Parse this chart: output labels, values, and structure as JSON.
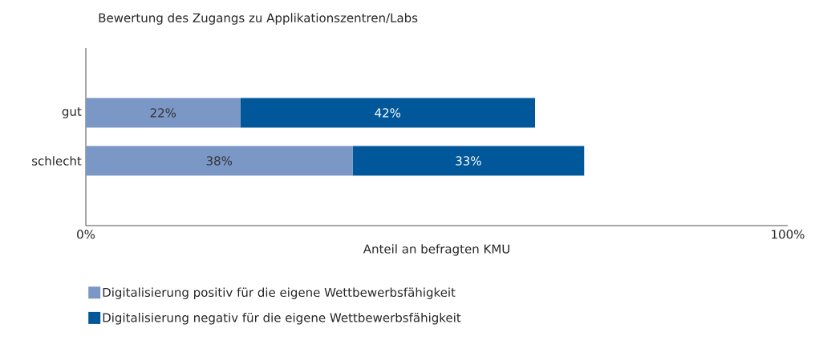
{
  "chart_data": {
    "type": "bar",
    "orientation": "horizontal",
    "stacked": true,
    "title": "Bewertung des Zugangs zu Applikationszentren/Labs",
    "xlabel": "Anteil an befragten KMU",
    "categories": [
      "gut",
      "schlecht"
    ],
    "series": [
      {
        "name": "Digitalisierung positiv für die eigene Wettbewerbsfähigkeit",
        "color": "#7b97c6",
        "values": [
          22,
          38
        ],
        "value_labels": [
          "22%",
          "38%"
        ]
      },
      {
        "name": "Digitalisierung negativ für die eigene Wettbewerbsfähigkeit",
        "color": "#00589b",
        "values": [
          42,
          33
        ],
        "value_labels": [
          "42%",
          "33%"
        ]
      }
    ],
    "xlim": [
      0,
      100
    ],
    "xticks": [
      {
        "value": 0,
        "label": "0%"
      },
      {
        "value": 100,
        "label": "100%"
      }
    ],
    "legend": "bottom"
  }
}
